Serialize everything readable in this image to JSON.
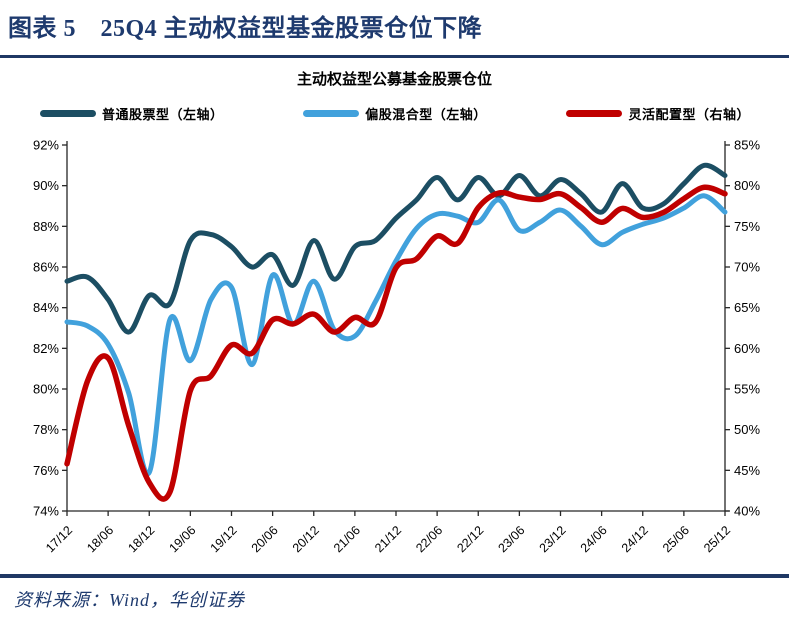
{
  "header": {
    "title": "图表 5　25Q4 主动权益型基金股票仓位下降"
  },
  "chart": {
    "title": "主动权益型公募基金股票仓位",
    "legend": [
      {
        "label": "普通股票型（左轴）",
        "color": "#1C4E63"
      },
      {
        "label": "偏股混合型（左轴）",
        "color": "#41A1DC"
      },
      {
        "label": "灵活配置型（右轴）",
        "color": "#C00000"
      }
    ]
  },
  "chart_data": {
    "type": "line",
    "title": "主动权益型公募基金股票仓位",
    "x_tick_labels": [
      "17/12",
      "18/06",
      "18/12",
      "19/06",
      "19/12",
      "20/06",
      "20/12",
      "21/06",
      "21/12",
      "22/06",
      "22/12",
      "23/06",
      "23/12",
      "24/06",
      "24/12",
      "25/06",
      "25/12"
    ],
    "x_quarters": [
      "17/12",
      "18/03",
      "18/06",
      "18/09",
      "18/12",
      "19/03",
      "19/06",
      "19/09",
      "19/12",
      "20/03",
      "20/06",
      "20/09",
      "20/12",
      "21/03",
      "21/06",
      "21/09",
      "21/12",
      "22/03",
      "22/06",
      "22/09",
      "22/12",
      "23/03",
      "23/06",
      "23/09",
      "23/12",
      "24/03",
      "24/06",
      "24/09",
      "24/12",
      "25/03",
      "25/06",
      "25/09",
      "25/12"
    ],
    "left_axis": {
      "min": 74,
      "max": 92,
      "ticks": [
        "92%",
        "90%",
        "88%",
        "86%",
        "84%",
        "82%",
        "80%",
        "78%",
        "76%",
        "74%"
      ]
    },
    "right_axis": {
      "min": 40,
      "max": 85,
      "ticks": [
        "85%",
        "80%",
        "75%",
        "70%",
        "65%",
        "60%",
        "55%",
        "50%",
        "45%",
        "40%"
      ]
    },
    "grid": "off",
    "legend_position": "top",
    "series": [
      {
        "name": "普通股票型（左轴）",
        "axis": "left",
        "color": "#1C4E63",
        "values": [
          85.3,
          85.5,
          84.4,
          82.8,
          84.6,
          84.2,
          87.3,
          87.6,
          87.0,
          86.0,
          86.6,
          85.1,
          87.3,
          85.4,
          87.0,
          87.3,
          88.4,
          89.3,
          90.4,
          89.3,
          90.4,
          89.5,
          90.5,
          89.5,
          90.3,
          89.6,
          88.7,
          90.1,
          88.9,
          89.1,
          90.1,
          91.0,
          90.5
        ]
      },
      {
        "name": "偏股混合型（左轴）",
        "axis": "left",
        "color": "#41A1DC",
        "values": [
          83.3,
          83.1,
          82.2,
          79.8,
          75.9,
          83.4,
          81.4,
          84.4,
          85.0,
          81.2,
          85.6,
          83.2,
          85.3,
          82.9,
          82.6,
          84.3,
          86.3,
          87.9,
          88.6,
          88.5,
          88.2,
          89.3,
          87.8,
          88.2,
          88.8,
          88.0,
          87.1,
          87.7,
          88.1,
          88.4,
          88.9,
          89.5,
          88.7
        ]
      },
      {
        "name": "灵活配置型（右轴）",
        "axis": "right",
        "color": "#C00000",
        "values": [
          45.8,
          56.0,
          58.8,
          50.5,
          43.5,
          42.3,
          54.8,
          56.6,
          60.4,
          59.4,
          63.5,
          63.0,
          64.2,
          62.0,
          63.8,
          63.2,
          69.9,
          71.0,
          73.8,
          72.9,
          77.3,
          79.1,
          78.6,
          78.3,
          79.0,
          77.3,
          75.5,
          77.2,
          76.1,
          76.7,
          78.4,
          79.8,
          79.0
        ]
      }
    ],
    "axis_color": "#262626",
    "tick_label_color": "#000000"
  },
  "footer": {
    "source": "资料来源：Wind，华创证券"
  }
}
